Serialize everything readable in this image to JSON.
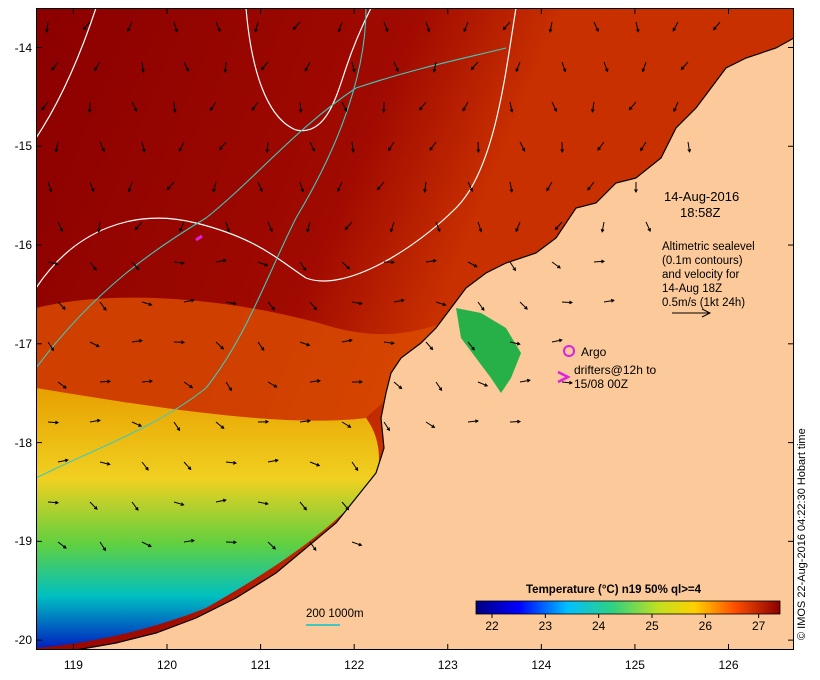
{
  "map": {
    "y_ticks": [
      "-14",
      "-15",
      "-16",
      "-17",
      "-18",
      "-19",
      "-20"
    ],
    "x_ticks": [
      "119",
      "120",
      "121",
      "122",
      "123",
      "124",
      "125",
      "126"
    ],
    "timestamp_date": "14-Aug-2016",
    "timestamp_time": "18:58Z",
    "altimetry_lines": [
      "Altimetric sealevel",
      "(0.1m contours)",
      "and velocity for",
      "14-Aug 18Z",
      "0.5m/s (1kt 24h)"
    ],
    "argo_label": "Argo",
    "drifters_line1": "drifters@12h to",
    "drifters_line2": "15/08 00Z",
    "bathy_label": "200  1000m",
    "credit": "© IMOS 22-Aug-2016 04:22:30 Hobart time",
    "colors": {
      "land": "#fbc99a",
      "argo": "#e020e0",
      "bathy": "#40c8c0",
      "contour": "#ffffff"
    }
  },
  "chart_data": {
    "type": "heatmap",
    "title": "Temperature (°C) n19 50% ql>=4",
    "colorbar_ticks": [
      "22",
      "23",
      "24",
      "25",
      "26",
      "27"
    ],
    "colorbar_range": [
      21.7,
      27.4
    ],
    "x_range": [
      118.6,
      126.7
    ],
    "y_range": [
      -20.1,
      -13.6
    ],
    "x_tick_values": [
      119,
      120,
      121,
      122,
      123,
      124,
      125,
      126
    ],
    "y_tick_values": [
      -14,
      -15,
      -16,
      -17,
      -18,
      -19,
      -20
    ]
  }
}
